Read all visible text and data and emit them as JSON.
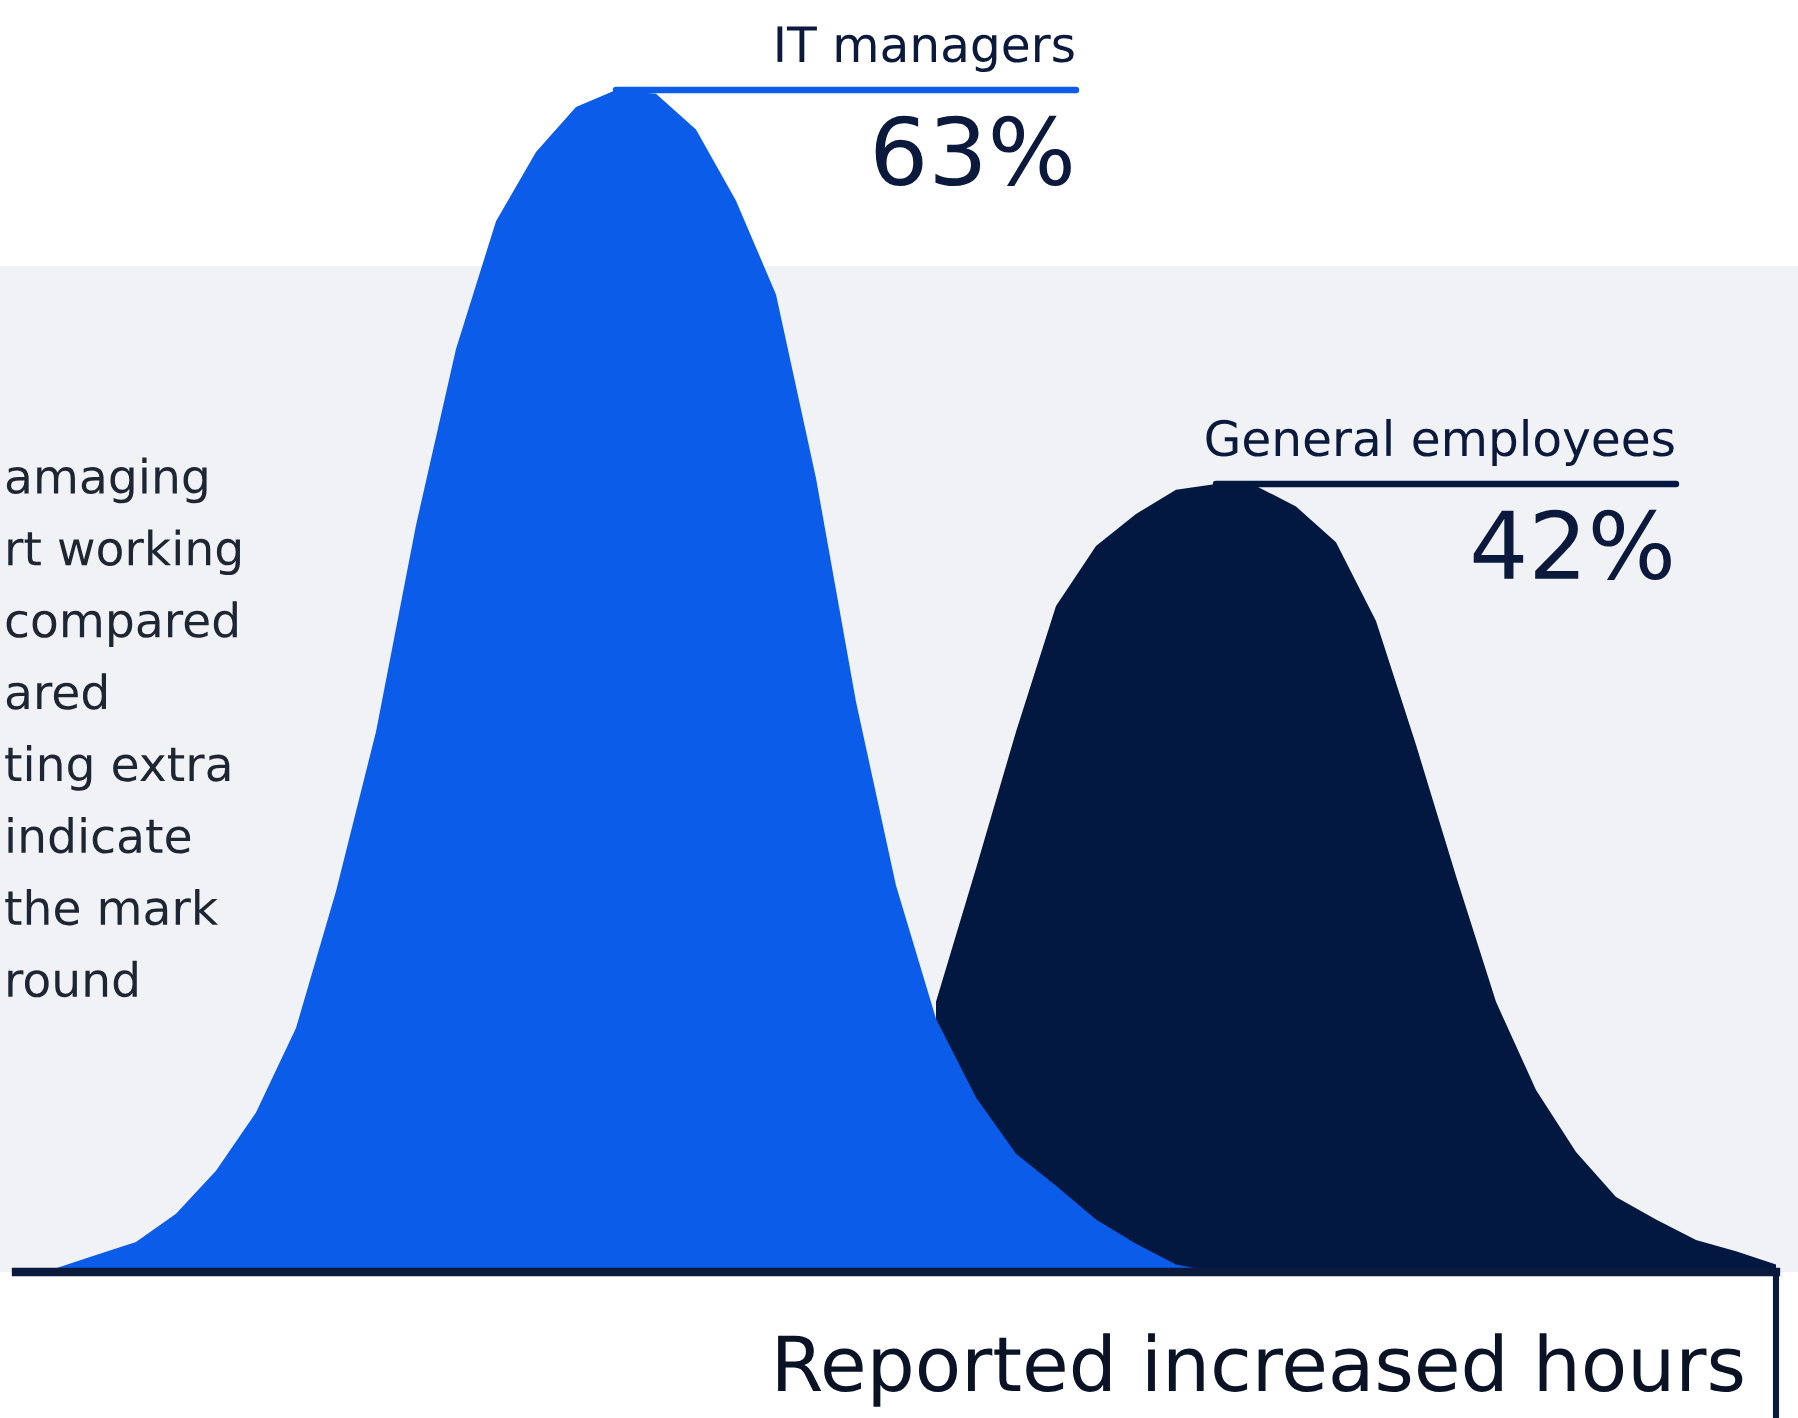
{
  "chart_data": {
    "type": "area",
    "xlabel": "Reported increased hours",
    "tick_labels": false,
    "categories": [
      null,
      null,
      null,
      null,
      null,
      null,
      null,
      null,
      null,
      null,
      null,
      null,
      null,
      null,
      null,
      null,
      null,
      null,
      null,
      null,
      null,
      null,
      null,
      null,
      null,
      null,
      null,
      null,
      null,
      null,
      null,
      null,
      null,
      null,
      null,
      null,
      null,
      null,
      null,
      null,
      null,
      null,
      null,
      null,
      null
    ],
    "annotations": [
      "amaging\nrt working\ncompared\nared\nting extra\nindicate\nthe mark\nround"
    ],
    "series": [
      {
        "name": "General employees",
        "color": "#031840",
        "values": [
          null,
          null,
          null,
          null,
          null,
          null,
          null,
          null,
          null,
          null,
          null,
          null,
          null,
          null,
          null,
          null,
          null,
          null,
          null,
          null,
          null,
          null,
          null,
          14.4,
          21.5,
          28.8,
          35.5,
          38.7,
          40.4,
          41.7,
          42,
          41.9,
          40.8,
          38.9,
          34.7,
          28.1,
          21.1,
          14.4,
          9.7,
          6.4,
          4.0,
          2.8,
          1.7,
          1.1,
          0.4
        ],
        "value_labels": [
          null,
          null,
          null,
          null,
          null,
          null,
          null,
          null,
          null,
          null,
          null,
          null,
          null,
          null,
          null,
          null,
          null,
          null,
          null,
          null,
          null,
          null,
          null,
          null,
          null,
          null,
          null,
          null,
          null,
          null,
          "42%",
          null,
          null,
          null,
          null,
          null,
          null,
          null,
          null,
          null,
          null,
          null,
          null,
          null,
          null
        ]
      },
      {
        "name": "IT managers",
        "color": "#0b5ce8",
        "values": [
          0,
          0.2,
          0.9,
          1.6,
          3.1,
          5.4,
          8.5,
          13.0,
          20.3,
          28.8,
          39.8,
          49.2,
          56.0,
          59.7,
          62.1,
          63,
          62.8,
          60.9,
          57.1,
          52.1,
          42.3,
          30.4,
          20.6,
          13.5,
          9.3,
          6.3,
          4.6,
          2.8,
          1.5,
          0.4,
          0,
          null,
          null,
          null,
          null,
          null,
          null,
          null,
          null,
          null,
          null,
          null,
          null,
          null,
          null
        ],
        "value_labels": [
          null,
          null,
          null,
          null,
          null,
          null,
          null,
          null,
          null,
          null,
          null,
          null,
          null,
          null,
          null,
          "63%",
          null,
          null,
          null,
          null,
          null,
          null,
          null,
          null,
          null,
          null,
          null,
          null,
          null,
          null,
          null,
          null,
          null,
          null,
          null,
          null,
          null,
          null,
          null,
          null,
          null,
          null,
          null,
          null,
          null
        ]
      }
    ]
  }
}
